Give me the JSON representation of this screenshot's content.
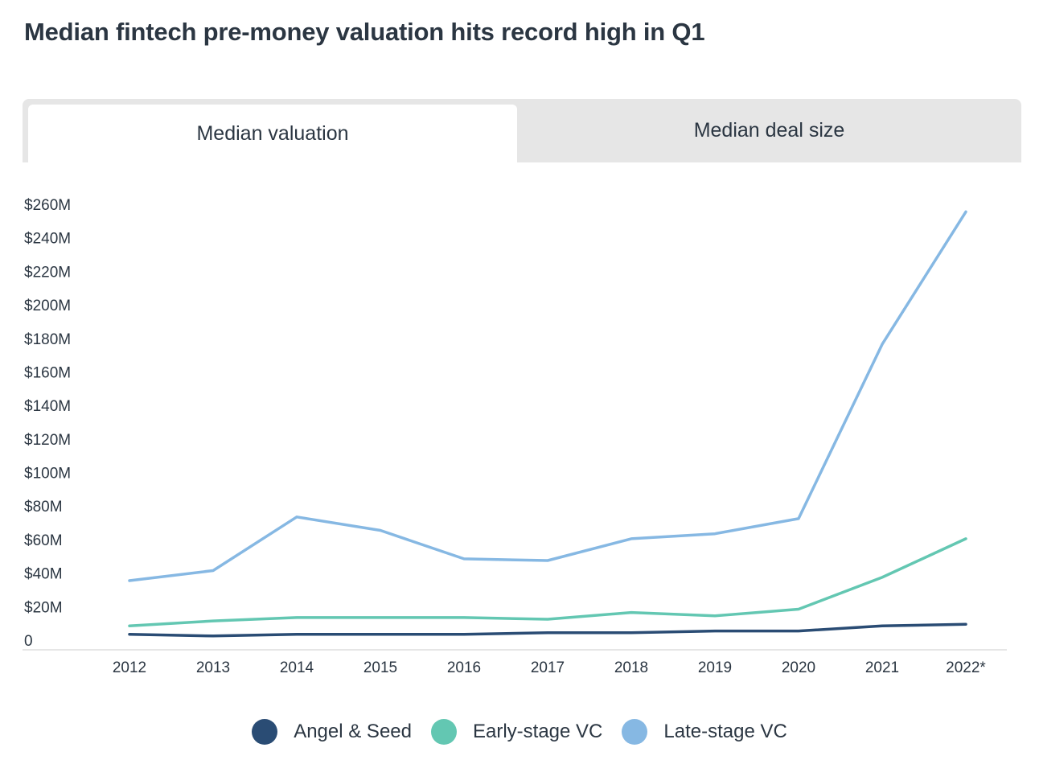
{
  "title": "Median fintech pre-money valuation hits record high in Q1",
  "tabs": [
    {
      "label": "Median valuation",
      "active": true
    },
    {
      "label": "Median deal size",
      "active": false
    }
  ],
  "colors": {
    "angel_seed": "#2a4c74",
    "early_stage": "#63c7b2",
    "late_stage": "#86b8e3",
    "text": "#2b3642",
    "tab_bg": "#e6e6e6",
    "axis": "#cccccc"
  },
  "chart_data": {
    "type": "line",
    "title": "Median fintech pre-money valuation hits record high in Q1",
    "x": [
      "2012",
      "2013",
      "2014",
      "2015",
      "2016",
      "2017",
      "2018",
      "2019",
      "2020",
      "2021",
      "2022*"
    ],
    "ylim": [
      0,
      260
    ],
    "y_ticks": [
      0,
      20,
      40,
      60,
      80,
      100,
      120,
      140,
      160,
      180,
      200,
      220,
      240,
      260
    ],
    "y_tick_labels": [
      "0",
      "$20M",
      "$40M",
      "$60M",
      "$80M",
      "$100M",
      "$120M",
      "$140M",
      "$160M",
      "$180M",
      "$200M",
      "$220M",
      "$240M",
      "$260M"
    ],
    "grid": false,
    "legend_position": "bottom-center",
    "series": [
      {
        "name": "Angel & Seed",
        "color": "#2a4c74",
        "values": [
          3,
          2,
          3,
          3,
          3,
          4,
          4,
          5,
          5,
          8,
          9
        ]
      },
      {
        "name": "Early-stage VC",
        "color": "#63c7b2",
        "values": [
          8,
          11,
          13,
          13,
          13,
          12,
          16,
          14,
          18,
          37,
          60
        ]
      },
      {
        "name": "Late-stage VC",
        "color": "#86b8e3",
        "values": [
          35,
          41,
          73,
          65,
          48,
          47,
          60,
          63,
          72,
          176,
          255
        ]
      }
    ]
  },
  "legend": [
    {
      "label": "Angel & Seed",
      "color": "#2a4c74"
    },
    {
      "label": "Early-stage VC",
      "color": "#63c7b2"
    },
    {
      "label": "Late-stage VC",
      "color": "#86b8e3"
    }
  ]
}
